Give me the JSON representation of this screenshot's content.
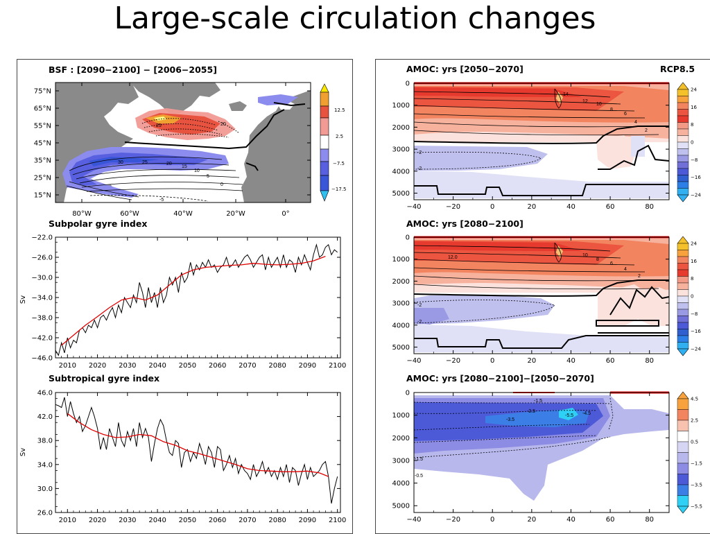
{
  "slide_title": "Large-scale circulation changes",
  "left_panel": {
    "bsf_map": {
      "title": "BSF : [2090−2100] − [2006−2055]",
      "lat_labels": [
        "75°N",
        "65°N",
        "55°N",
        "45°N",
        "35°N",
        "25°N",
        "15°N"
      ],
      "lon_labels": [
        "80°W",
        "60°W",
        "40°W",
        "20°W",
        "0°"
      ],
      "colorbar_labels": [
        "12.5",
        "2.5",
        "−7.5",
        "−17.5"
      ],
      "contour_labels": [
        "25",
        "20",
        "30",
        "25",
        "20",
        "15",
        "10",
        "5",
        "0",
        "-5"
      ]
    },
    "subpolar": {
      "title": "Subpolar gyre index",
      "ylabel": "Sv",
      "y_ticks": [
        "−22.0",
        "−26.0",
        "−30.0",
        "−34.0",
        "−38.0",
        "−42.0",
        "−46.0"
      ],
      "x_ticks": [
        "2010",
        "2020",
        "2030",
        "2040",
        "2050",
        "2060",
        "2070",
        "2080",
        "2090",
        "2100"
      ]
    },
    "subtropical": {
      "title": "Subtropical gyre index",
      "ylabel": "Sv",
      "y_ticks": [
        "46.0",
        "42.0",
        "38.0",
        "34.0",
        "30.0",
        "26.0"
      ],
      "x_ticks": [
        "2010",
        "2020",
        "2030",
        "2040",
        "2050",
        "2060",
        "2070",
        "2080",
        "2090",
        "2100"
      ]
    }
  },
  "right_panel": {
    "scenario": "RCP8.5",
    "amoc1": {
      "title": "AMOC: yrs [2050−2070]",
      "y_ticks": [
        "0",
        "1000",
        "2000",
        "3000",
        "4000",
        "5000"
      ],
      "x_ticks": [
        "−40",
        "−20",
        "0",
        "20",
        "40",
        "60",
        "80"
      ],
      "colorbar_labels": [
        "24",
        "16",
        "8",
        "0",
        "−8",
        "−16",
        "−24"
      ],
      "contour_labels": [
        "14",
        "12",
        "10",
        "8",
        "6",
        "4",
        "2",
        "-2",
        "-2"
      ]
    },
    "amoc2": {
      "title": "AMOC: yrs [2080−2100]",
      "y_ticks": [
        "0",
        "1000",
        "2000",
        "3000",
        "4000",
        "5000"
      ],
      "x_ticks": [
        "−40",
        "−20",
        "0",
        "20",
        "40",
        "60",
        "80"
      ],
      "colorbar_labels": [
        "24",
        "16",
        "8",
        "0",
        "−8",
        "−16",
        "−24"
      ],
      "contour_labels": [
        "12.0",
        "10",
        "8",
        "6",
        "4",
        "2",
        "-2",
        "-2"
      ]
    },
    "amoc3": {
      "title": "AMOC: yrs [2080−2100]−[2050−2070]",
      "y_ticks": [
        "0",
        "1000",
        "2000",
        "3000",
        "4000",
        "5000"
      ],
      "x_ticks": [
        "−40",
        "−20",
        "0",
        "20",
        "40",
        "60",
        "80"
      ],
      "colorbar_labels": [
        "4.5",
        "2.5",
        "0.5",
        "−1.5",
        "−3.5",
        "−5.5"
      ],
      "contour_labels": [
        "-1.5",
        "-2.5",
        "-3.5",
        "-4.5",
        "-5.5",
        "-1.5",
        "-0.5"
      ]
    }
  },
  "chart_data": [
    {
      "id": "subpolar",
      "type": "line",
      "title": "Subpolar gyre index",
      "ylabel": "Sv",
      "xlabel": "",
      "xlim": [
        2006,
        2101
      ],
      "ylim": [
        -46,
        -22
      ],
      "series": [
        {
          "x": [
            2006,
            2007,
            2008,
            2009,
            2010,
            2011,
            2012,
            2013,
            2014,
            2015,
            2016,
            2017,
            2018,
            2019,
            2020,
            2021,
            2022,
            2023,
            2024,
            2025,
            2026,
            2027,
            2028,
            2029,
            2030,
            2031,
            2032,
            2033,
            2034,
            2035,
            2036,
            2037,
            2038,
            2039,
            2040,
            2041,
            2042,
            2043,
            2044,
            2045,
            2046,
            2047,
            2048,
            2049,
            2050,
            2051,
            2052,
            2053,
            2054,
            2055,
            2056,
            2057,
            2058,
            2059,
            2060,
            2061,
            2062,
            2063,
            2064,
            2065,
            2066,
            2067,
            2068,
            2069,
            2070,
            2071,
            2072,
            2073,
            2074,
            2075,
            2076,
            2077,
            2078,
            2079,
            2080,
            2081,
            2082,
            2083,
            2084,
            2085,
            2086,
            2087,
            2088,
            2089,
            2090,
            2091,
            2092,
            2093,
            2094,
            2095,
            2096,
            2097,
            2098,
            2099,
            2100
          ],
          "y": [
            -44.5,
            -45.5,
            -43,
            -45,
            -42,
            -44,
            -42.5,
            -43,
            -40.5,
            -40,
            -41,
            -39.5,
            -40,
            -38.5,
            -40,
            -38,
            -37.5,
            -38.5,
            -37,
            -36,
            -38,
            -35.5,
            -37,
            -34,
            -35,
            -36,
            -33.5,
            -35,
            -31,
            -33,
            -36,
            -32,
            -35,
            -33,
            -36,
            -32,
            -35,
            -33.5,
            -30,
            -31.5,
            -30,
            -33,
            -29,
            -31,
            -30,
            -27,
            -29.5,
            -27.5,
            -28.5,
            -27,
            -28,
            -26.5,
            -28,
            -27.5,
            -29,
            -28,
            -27.5,
            -26,
            -28,
            -27.5,
            -26.5,
            -28,
            -27,
            -26,
            -25.5,
            -26.5,
            -28,
            -27,
            -26,
            -25.5,
            -28.5,
            -26,
            -28,
            -27,
            -26,
            -28,
            -25.5,
            -28,
            -26.5,
            -27,
            -29,
            -26,
            -27.5,
            -25.5,
            -27,
            -28.5,
            -25.5,
            -23.5,
            -26,
            -25.5,
            -24,
            -23.5,
            -25.5,
            -24.5,
            -25
          ]
        },
        {
          "x": [
            2008,
            2012,
            2016,
            2020,
            2024,
            2028,
            2032,
            2036,
            2040,
            2044,
            2048,
            2052,
            2056,
            2060,
            2064,
            2068,
            2072,
            2076,
            2080,
            2084,
            2088,
            2092,
            2096
          ],
          "y": [
            -43.5,
            -41.5,
            -39.5,
            -37.8,
            -36,
            -34.5,
            -34,
            -34.5,
            -33.5,
            -31.5,
            -29.5,
            -28.5,
            -28,
            -27.8,
            -27.6,
            -27.5,
            -27.2,
            -27.4,
            -27.5,
            -27.4,
            -27.2,
            -26.7,
            -25.8
          ]
        }
      ]
    },
    {
      "id": "subtropical",
      "type": "line",
      "title": "Subtropical gyre index",
      "ylabel": "Sv",
      "xlabel": "",
      "xlim": [
        2006,
        2101
      ],
      "ylim": [
        26,
        46
      ],
      "series": [
        {
          "x": [
            2006,
            2007,
            2008,
            2009,
            2010,
            2011,
            2012,
            2013,
            2014,
            2015,
            2016,
            2017,
            2018,
            2019,
            2020,
            2021,
            2022,
            2023,
            2024,
            2025,
            2026,
            2027,
            2028,
            2029,
            2030,
            2031,
            2032,
            2033,
            2034,
            2035,
            2036,
            2037,
            2038,
            2039,
            2040,
            2041,
            2042,
            2043,
            2044,
            2045,
            2046,
            2047,
            2048,
            2049,
            2050,
            2051,
            2052,
            2053,
            2054,
            2055,
            2056,
            2057,
            2058,
            2059,
            2060,
            2061,
            2062,
            2063,
            2064,
            2065,
            2066,
            2067,
            2068,
            2069,
            2070,
            2071,
            2072,
            2073,
            2074,
            2075,
            2076,
            2077,
            2078,
            2079,
            2080,
            2081,
            2082,
            2083,
            2084,
            2085,
            2086,
            2087,
            2088,
            2089,
            2090,
            2091,
            2092,
            2093,
            2094,
            2095,
            2096,
            2097,
            2098,
            2099,
            2100
          ],
          "y": [
            44,
            43.8,
            43.5,
            45.2,
            42,
            44.5,
            42.5,
            41,
            42,
            39.5,
            40.5,
            42,
            43.5,
            42,
            40,
            36.5,
            38.5,
            36.5,
            40,
            38.5,
            37,
            41,
            38,
            37,
            39.5,
            38,
            40,
            37,
            41,
            38.5,
            40,
            38.5,
            34.5,
            37.5,
            40,
            41.5,
            40.5,
            38,
            36,
            35.5,
            38,
            37.5,
            33.5,
            36,
            36.5,
            34.5,
            36,
            35,
            37.5,
            36,
            34,
            37,
            36,
            33.5,
            37,
            36.5,
            33,
            34,
            35.5,
            33.5,
            35,
            32.5,
            34,
            33,
            32.5,
            31.5,
            34,
            32,
            33,
            34.5,
            32.5,
            33.5,
            32,
            33,
            31.5,
            33.5,
            32,
            34,
            31,
            33.5,
            33,
            30.5,
            32.5,
            34,
            31.5,
            33.5,
            32,
            32.5,
            33,
            34,
            34.5,
            32,
            27.5,
            30,
            32
          ]
        },
        {
          "x": [
            2010,
            2014,
            2018,
            2022,
            2026,
            2030,
            2034,
            2038,
            2042,
            2046,
            2050,
            2054,
            2058,
            2062,
            2066,
            2070,
            2074,
            2078,
            2082,
            2086,
            2090,
            2094,
            2097
          ],
          "y": [
            42.5,
            41,
            39.8,
            39,
            38.5,
            38.6,
            39,
            38.8,
            37.8,
            37.2,
            36.3,
            35.8,
            35.2,
            34.6,
            34,
            33.3,
            33,
            32.9,
            32.8,
            32.8,
            32.9,
            32.6,
            32
          ]
        }
      ]
    }
  ]
}
